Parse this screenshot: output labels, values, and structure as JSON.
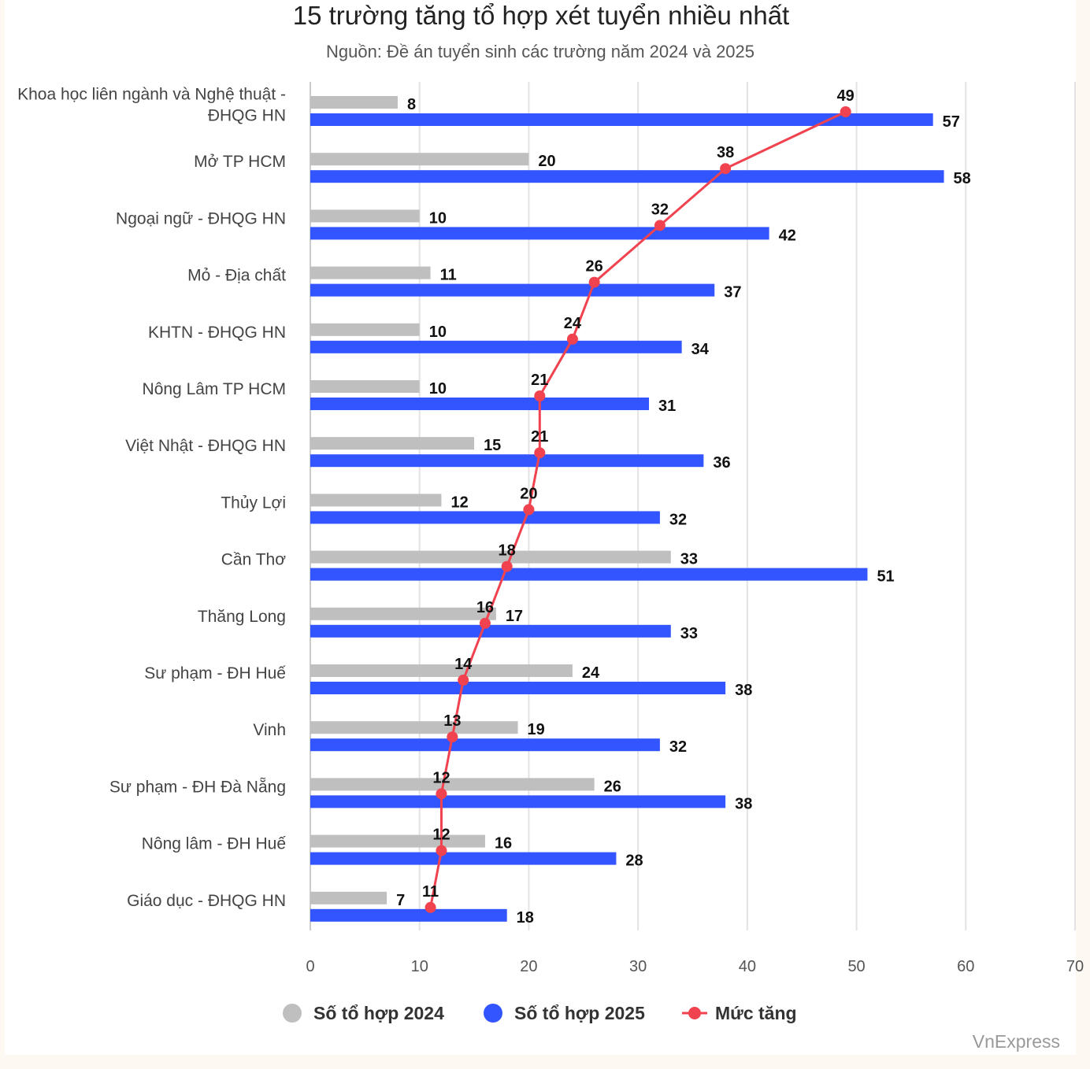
{
  "chart_data": {
    "type": "bar",
    "orientation": "horizontal",
    "title": "15 trường tăng tổ hợp xét tuyển nhiều nhất",
    "subtitle": "Nguồn: Đề án tuyển sinh các trường năm 2024 và 2025",
    "categories": [
      [
        "Khoa học liên ngành và Nghệ thuật -",
        "ĐHQG HN"
      ],
      [
        "Mở TP HCM"
      ],
      [
        "Ngoại ngữ - ĐHQG HN"
      ],
      [
        "Mỏ - Địa chất"
      ],
      [
        "KHTN - ĐHQG HN"
      ],
      [
        "Nông Lâm TP HCM"
      ],
      [
        "Việt Nhật - ĐHQG HN"
      ],
      [
        "Thủy Lợi"
      ],
      [
        "Cần Thơ"
      ],
      [
        "Thăng Long"
      ],
      [
        "Sư phạm - ĐH Huế"
      ],
      [
        "Vinh"
      ],
      [
        "Sư phạm - ĐH Đà Nẵng"
      ],
      [
        "Nông lâm - ĐH Huế"
      ],
      [
        "Giáo dục - ĐHQG HN"
      ]
    ],
    "series": [
      {
        "name": "Số tổ hợp 2024",
        "type": "bar",
        "color": "#bfbfbf",
        "values": [
          8,
          20,
          10,
          11,
          10,
          10,
          15,
          12,
          33,
          17,
          24,
          19,
          26,
          16,
          7
        ]
      },
      {
        "name": "Số tổ hợp 2025",
        "type": "bar",
        "color": "#3355ff",
        "values": [
          57,
          58,
          42,
          37,
          34,
          31,
          36,
          32,
          51,
          33,
          38,
          32,
          38,
          28,
          18
        ]
      },
      {
        "name": "Mức tăng",
        "type": "line",
        "color": "#f0434f",
        "values": [
          49,
          38,
          32,
          26,
          24,
          21,
          21,
          20,
          18,
          16,
          14,
          13,
          12,
          12,
          11
        ]
      }
    ],
    "xlim": [
      0,
      70
    ],
    "xticks": [
      0,
      10,
      20,
      30,
      40,
      50,
      60,
      70
    ],
    "grid": true,
    "legend_position": "bottom",
    "source": "VnExpress"
  }
}
